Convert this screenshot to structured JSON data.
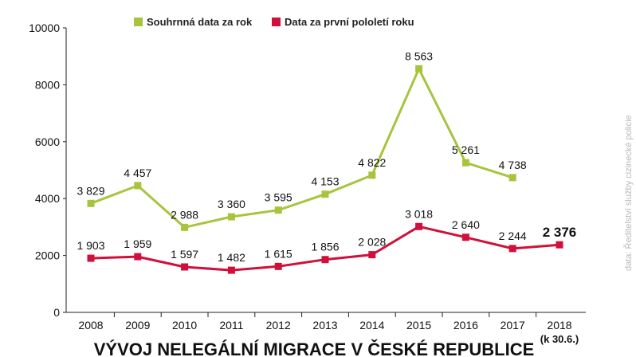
{
  "chart_data": {
    "type": "line",
    "title": "VÝVOJ NELEGÁLNÍ MIGRACE V ČESKÉ REPUBLICE",
    "source": "data: Ředitelství služby cizinecké policie",
    "categories": [
      "2008",
      "2009",
      "2010",
      "2011",
      "2012",
      "2013",
      "2014",
      "2015",
      "2016",
      "2017",
      "2018"
    ],
    "category_note": "(k 30.6.)",
    "yticks": [
      "0",
      "2000",
      "4000",
      "6000",
      "8000",
      "10000"
    ],
    "ylim": [
      0,
      10000
    ],
    "legend_position": "top",
    "series": [
      {
        "name": "Souhrnná data za rok",
        "color": "#a8c43c",
        "values": [
          3829,
          4457,
          2988,
          3360,
          3595,
          4153,
          4822,
          8563,
          5261,
          4738,
          null
        ],
        "labels": [
          "3 829",
          "4 457",
          "2 988",
          "3 360",
          "3 595",
          "4 153",
          "4 822",
          "8 563",
          "5 261",
          "4 738",
          ""
        ]
      },
      {
        "name": "Data za první pololetí roku",
        "color": "#d0103a",
        "values": [
          1903,
          1959,
          1597,
          1482,
          1615,
          1856,
          2028,
          3018,
          2640,
          2244,
          2376
        ],
        "labels": [
          "1 903",
          "1 959",
          "1 597",
          "1 482",
          "1 615",
          "1 856",
          "2 028",
          "3 018",
          "2 640",
          "2 244",
          "2 376"
        ]
      }
    ]
  }
}
